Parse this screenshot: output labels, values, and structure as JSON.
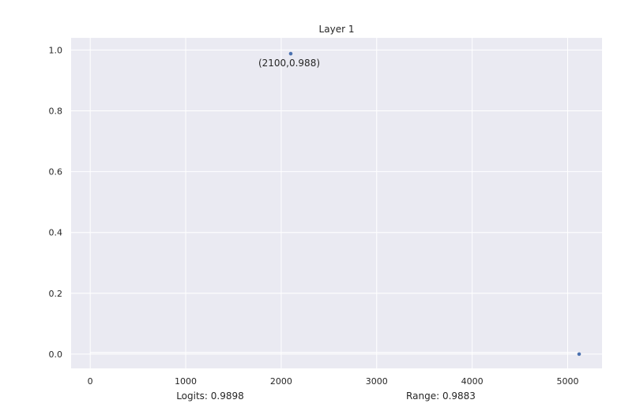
{
  "chart_data": {
    "type": "scatter",
    "title": "Layer 1",
    "xlabel": "",
    "ylabel": "",
    "xlim": [
      -200,
      5360
    ],
    "ylim": [
      -0.047,
      1.04
    ],
    "xticks": [
      0,
      1000,
      2000,
      3000,
      4000,
      5000
    ],
    "yticks": [
      0.0,
      0.2,
      0.4,
      0.6,
      0.8,
      1.0
    ],
    "xtick_labels": [
      "0",
      "1000",
      "2000",
      "3000",
      "4000",
      "5000"
    ],
    "ytick_labels": [
      "0.0",
      "0.2",
      "0.4",
      "0.6",
      "0.8",
      "1.0"
    ],
    "grid": true,
    "background": "#eaeaf2",
    "point_color": "#4c72b0",
    "series": [
      {
        "x": [
          2100,
          5120
        ],
        "y": [
          0.988,
          0.0
        ]
      }
    ],
    "line": {
      "x": [
        0,
        5120
      ],
      "y": [
        0.0,
        0.0
      ],
      "color": "#ffffff"
    },
    "annotations": [
      {
        "text": "(2100,0.988)",
        "x": 2100,
        "y": 0.988
      }
    ]
  },
  "footer": {
    "logits": "Logits: 0.9898",
    "range": "Range: 0.9883"
  }
}
